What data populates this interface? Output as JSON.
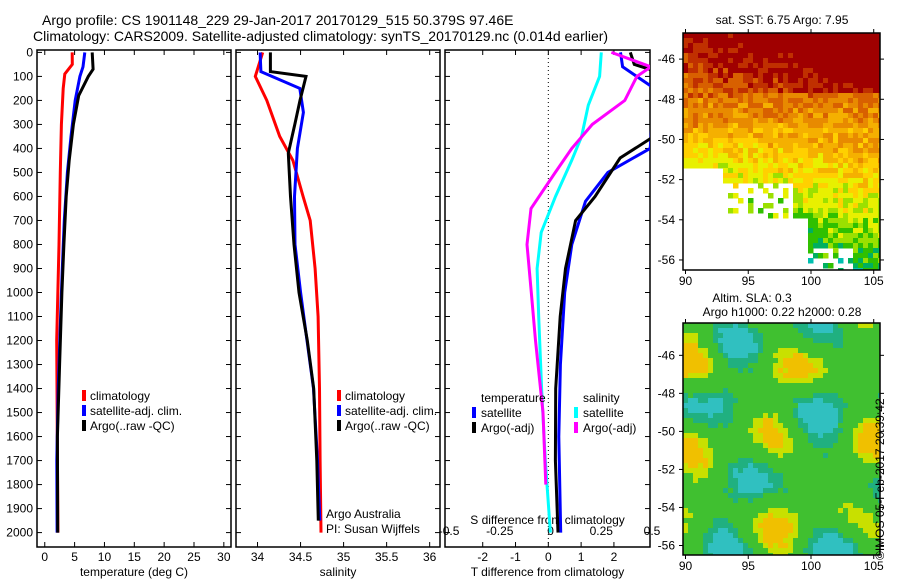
{
  "header": {
    "line1": "Argo profile: CS 1901148_229 29-Jan-2017 20170129_515 50.379S 97.46E",
    "line2": "Climatology: CARS2009. Satellite-adjusted climatology: synTS_20170129.nc (0.014d earlier)"
  },
  "footer": {
    "credit": "©IMOS 05-Feb-2017 20:39:42"
  },
  "colors": {
    "climatology": "#ff0000",
    "satellite": "#0000ff",
    "argo": "#000000",
    "sal_satellite": "#00ffff",
    "sal_argo": "#ff00ff"
  },
  "chart_data": [
    {
      "type": "line",
      "id": "temperature",
      "xlabel": "temperature (deg C)",
      "ylabel": "depth",
      "xlim": [
        -1.3,
        31.2
      ],
      "ylim": [
        2060,
        -10
      ],
      "xticks": [
        0,
        5,
        10,
        15,
        20,
        25,
        30
      ],
      "yticks": [
        0,
        100,
        200,
        300,
        400,
        500,
        600,
        700,
        800,
        900,
        1000,
        1100,
        1200,
        1300,
        1400,
        1500,
        1600,
        1700,
        1800,
        1900,
        2000
      ],
      "legend": [
        "climatology",
        "satellite-adj. clim.",
        "Argo(..raw -QC)"
      ],
      "series": [
        {
          "name": "climatology",
          "color": "#ff0000",
          "points": [
            [
              4.6,
              0
            ],
            [
              4.5,
              50
            ],
            [
              3.5,
              90
            ],
            [
              2.9,
              150
            ],
            [
              2.6,
              300
            ],
            [
              2.4,
              500
            ],
            [
              2.3,
              800
            ],
            [
              2.2,
              1200
            ],
            [
              2.1,
              1600
            ],
            [
              2.0,
              2000
            ]
          ]
        },
        {
          "name": "satellite-adj. clim.",
          "color": "#0000ff",
          "points": [
            [
              6.7,
              0
            ],
            [
              6.6,
              60
            ],
            [
              5.7,
              100
            ],
            [
              4.9,
              200
            ],
            [
              4.2,
              350
            ],
            [
              3.6,
              500
            ],
            [
              3.1,
              700
            ],
            [
              2.8,
              900
            ],
            [
              2.6,
              1100
            ],
            [
              2.4,
              1400
            ],
            [
              2.2,
              1700
            ],
            [
              2.1,
              2000
            ]
          ]
        },
        {
          "name": "Argo(..raw -QC)",
          "color": "#000000",
          "points": [
            [
              7.95,
              0
            ],
            [
              7.9,
              70
            ],
            [
              7.1,
              100
            ],
            [
              5.6,
              180
            ],
            [
              4.6,
              300
            ],
            [
              3.9,
              450
            ],
            [
              3.4,
              600
            ],
            [
              3.0,
              800
            ],
            [
              2.7,
              1000
            ],
            [
              2.5,
              1300
            ],
            [
              2.3,
              1600
            ],
            [
              2.2,
              2000
            ]
          ]
        }
      ]
    },
    {
      "type": "line",
      "id": "salinity",
      "xlabel": "salinity",
      "ylabel": "depth",
      "xlim": [
        33.75,
        36.12
      ],
      "ylim": [
        2060,
        -10
      ],
      "xticks": [
        34,
        34.5,
        35,
        35.5,
        36
      ],
      "legend": [
        "climatology",
        "satellite-adj. clim.",
        "Argo(..raw -QC)"
      ],
      "annotation": [
        "Argo Australia",
        "PI: Susan Wijffels"
      ],
      "series": [
        {
          "name": "climatology",
          "color": "#ff0000",
          "points": [
            [
              34.06,
              0
            ],
            [
              33.97,
              100
            ],
            [
              34.1,
              200
            ],
            [
              34.25,
              350
            ],
            [
              34.4,
              450
            ],
            [
              34.52,
              600
            ],
            [
              34.6,
              700
            ],
            [
              34.66,
              900
            ],
            [
              34.7,
              1100
            ],
            [
              34.73,
              1400
            ],
            [
              34.74,
              1700
            ],
            [
              34.74,
              2000
            ]
          ]
        },
        {
          "name": "satellite-adj. clim.",
          "color": "#0000ff",
          "points": [
            [
              34.03,
              0
            ],
            [
              34.05,
              80
            ],
            [
              34.48,
              150
            ],
            [
              34.52,
              250
            ],
            [
              34.45,
              400
            ],
            [
              34.42,
              600
            ],
            [
              34.43,
              800
            ],
            [
              34.5,
              1000
            ],
            [
              34.58,
              1200
            ],
            [
              34.66,
              1400
            ],
            [
              34.71,
              1700
            ],
            [
              34.73,
              1950
            ]
          ]
        },
        {
          "name": "Argo(..raw -QC)",
          "color": "#000000",
          "points": [
            [
              34.15,
              0
            ],
            [
              34.16,
              80
            ],
            [
              34.55,
              100
            ],
            [
              34.48,
              200
            ],
            [
              34.42,
              300
            ],
            [
              34.36,
              420
            ],
            [
              34.37,
              600
            ],
            [
              34.41,
              800
            ],
            [
              34.47,
              1000
            ],
            [
              34.57,
              1200
            ],
            [
              34.65,
              1400
            ],
            [
              34.7,
              1700
            ],
            [
              34.72,
              1950
            ]
          ]
        }
      ]
    },
    {
      "type": "line",
      "id": "difference",
      "xlabel": "T difference from climatology",
      "x2label": "S difference from climatology",
      "xlim": [
        -3.15,
        3.1
      ],
      "x2lim": [
        -0.52,
        0.49
      ],
      "ylim": [
        2060,
        -10
      ],
      "xticks": [
        -2,
        -1,
        0,
        1,
        2
      ],
      "x2ticks": [
        -0.5,
        -0.25,
        0,
        0.25,
        0.5
      ],
      "x2ticklabels": [
        "-0.5",
        "-0.25",
        "0",
        "0.25",
        "0.5"
      ],
      "legend": {
        "temperature_title": "temperature",
        "salinity_title": "salinity",
        "entries": [
          "satellite",
          "Argo(-adj)",
          "satellite",
          "Argo(-adj)"
        ]
      },
      "series": [
        {
          "name": "T satellite",
          "axis": "T",
          "color": "#0000ff",
          "points": [
            [
              2.2,
              0
            ],
            [
              2.3,
              60
            ],
            [
              3.2,
              150
            ],
            [
              3.1,
              400
            ],
            [
              1.8,
              500
            ],
            [
              1.1,
              620
            ],
            [
              0.7,
              800
            ],
            [
              0.5,
              1000
            ],
            [
              0.4,
              1300
            ],
            [
              0.35,
              1600
            ],
            [
              0.35,
              2000
            ]
          ]
        },
        {
          "name": "T Argo(-adj)",
          "axis": "T",
          "color": "#000000",
          "points": [
            [
              2.5,
              0
            ],
            [
              2.6,
              50
            ],
            [
              3.3,
              80
            ],
            [
              3.2,
              350
            ],
            [
              2.2,
              440
            ],
            [
              1.4,
              600
            ],
            [
              0.8,
              700
            ],
            [
              0.5,
              900
            ],
            [
              0.35,
              1100
            ],
            [
              0.25,
              1400
            ],
            [
              0.25,
              1700
            ],
            [
              0.3,
              2000
            ]
          ]
        },
        {
          "name": "S satellite",
          "axis": "S",
          "color": "#00ffff",
          "points": [
            [
              0.25,
              0
            ],
            [
              0.24,
              100
            ],
            [
              0.18,
              220
            ],
            [
              0.15,
              350
            ],
            [
              0.1,
              450
            ],
            [
              0.02,
              600
            ],
            [
              -0.05,
              750
            ],
            [
              -0.07,
              900
            ],
            [
              -0.06,
              1100
            ],
            [
              -0.04,
              1400
            ],
            [
              -0.02,
              1700
            ],
            [
              0.0,
              2000
            ]
          ]
        },
        {
          "name": "S Argo(-adj)",
          "axis": "S",
          "color": "#ff00ff",
          "points": [
            [
              0.3,
              0
            ],
            [
              0.5,
              60
            ],
            [
              0.42,
              100
            ],
            [
              0.36,
              200
            ],
            [
              0.2,
              300
            ],
            [
              0.1,
              400
            ],
            [
              0.02,
              500
            ],
            [
              -0.1,
              650
            ],
            [
              -0.12,
              800
            ],
            [
              -0.1,
              1000
            ],
            [
              -0.08,
              1200
            ],
            [
              -0.04,
              1500
            ],
            [
              -0.02,
              1800
            ]
          ]
        }
      ]
    },
    {
      "type": "heatmap",
      "id": "sst-map",
      "title": "sat. SST: 6.75 Argo: 7.95",
      "xlim": [
        89.8,
        105.5
      ],
      "ylim": [
        -56.5,
        -44.7
      ],
      "xticks": [
        90,
        95,
        100,
        105
      ],
      "yticks": [
        -46,
        -48,
        -50,
        -52,
        -54,
        -56
      ]
    },
    {
      "type": "heatmap",
      "id": "sla-map",
      "title1": "Altim. SLA: 0.3",
      "title2": "Argo h1000: 0.22 h2000: 0.28",
      "xlim": [
        89.8,
        105.5
      ],
      "ylim": [
        -56.5,
        -44.3
      ],
      "xticks": [
        90,
        95,
        100,
        105
      ],
      "yticks": [
        -46,
        -48,
        -50,
        -52,
        -54,
        -56
      ]
    }
  ]
}
